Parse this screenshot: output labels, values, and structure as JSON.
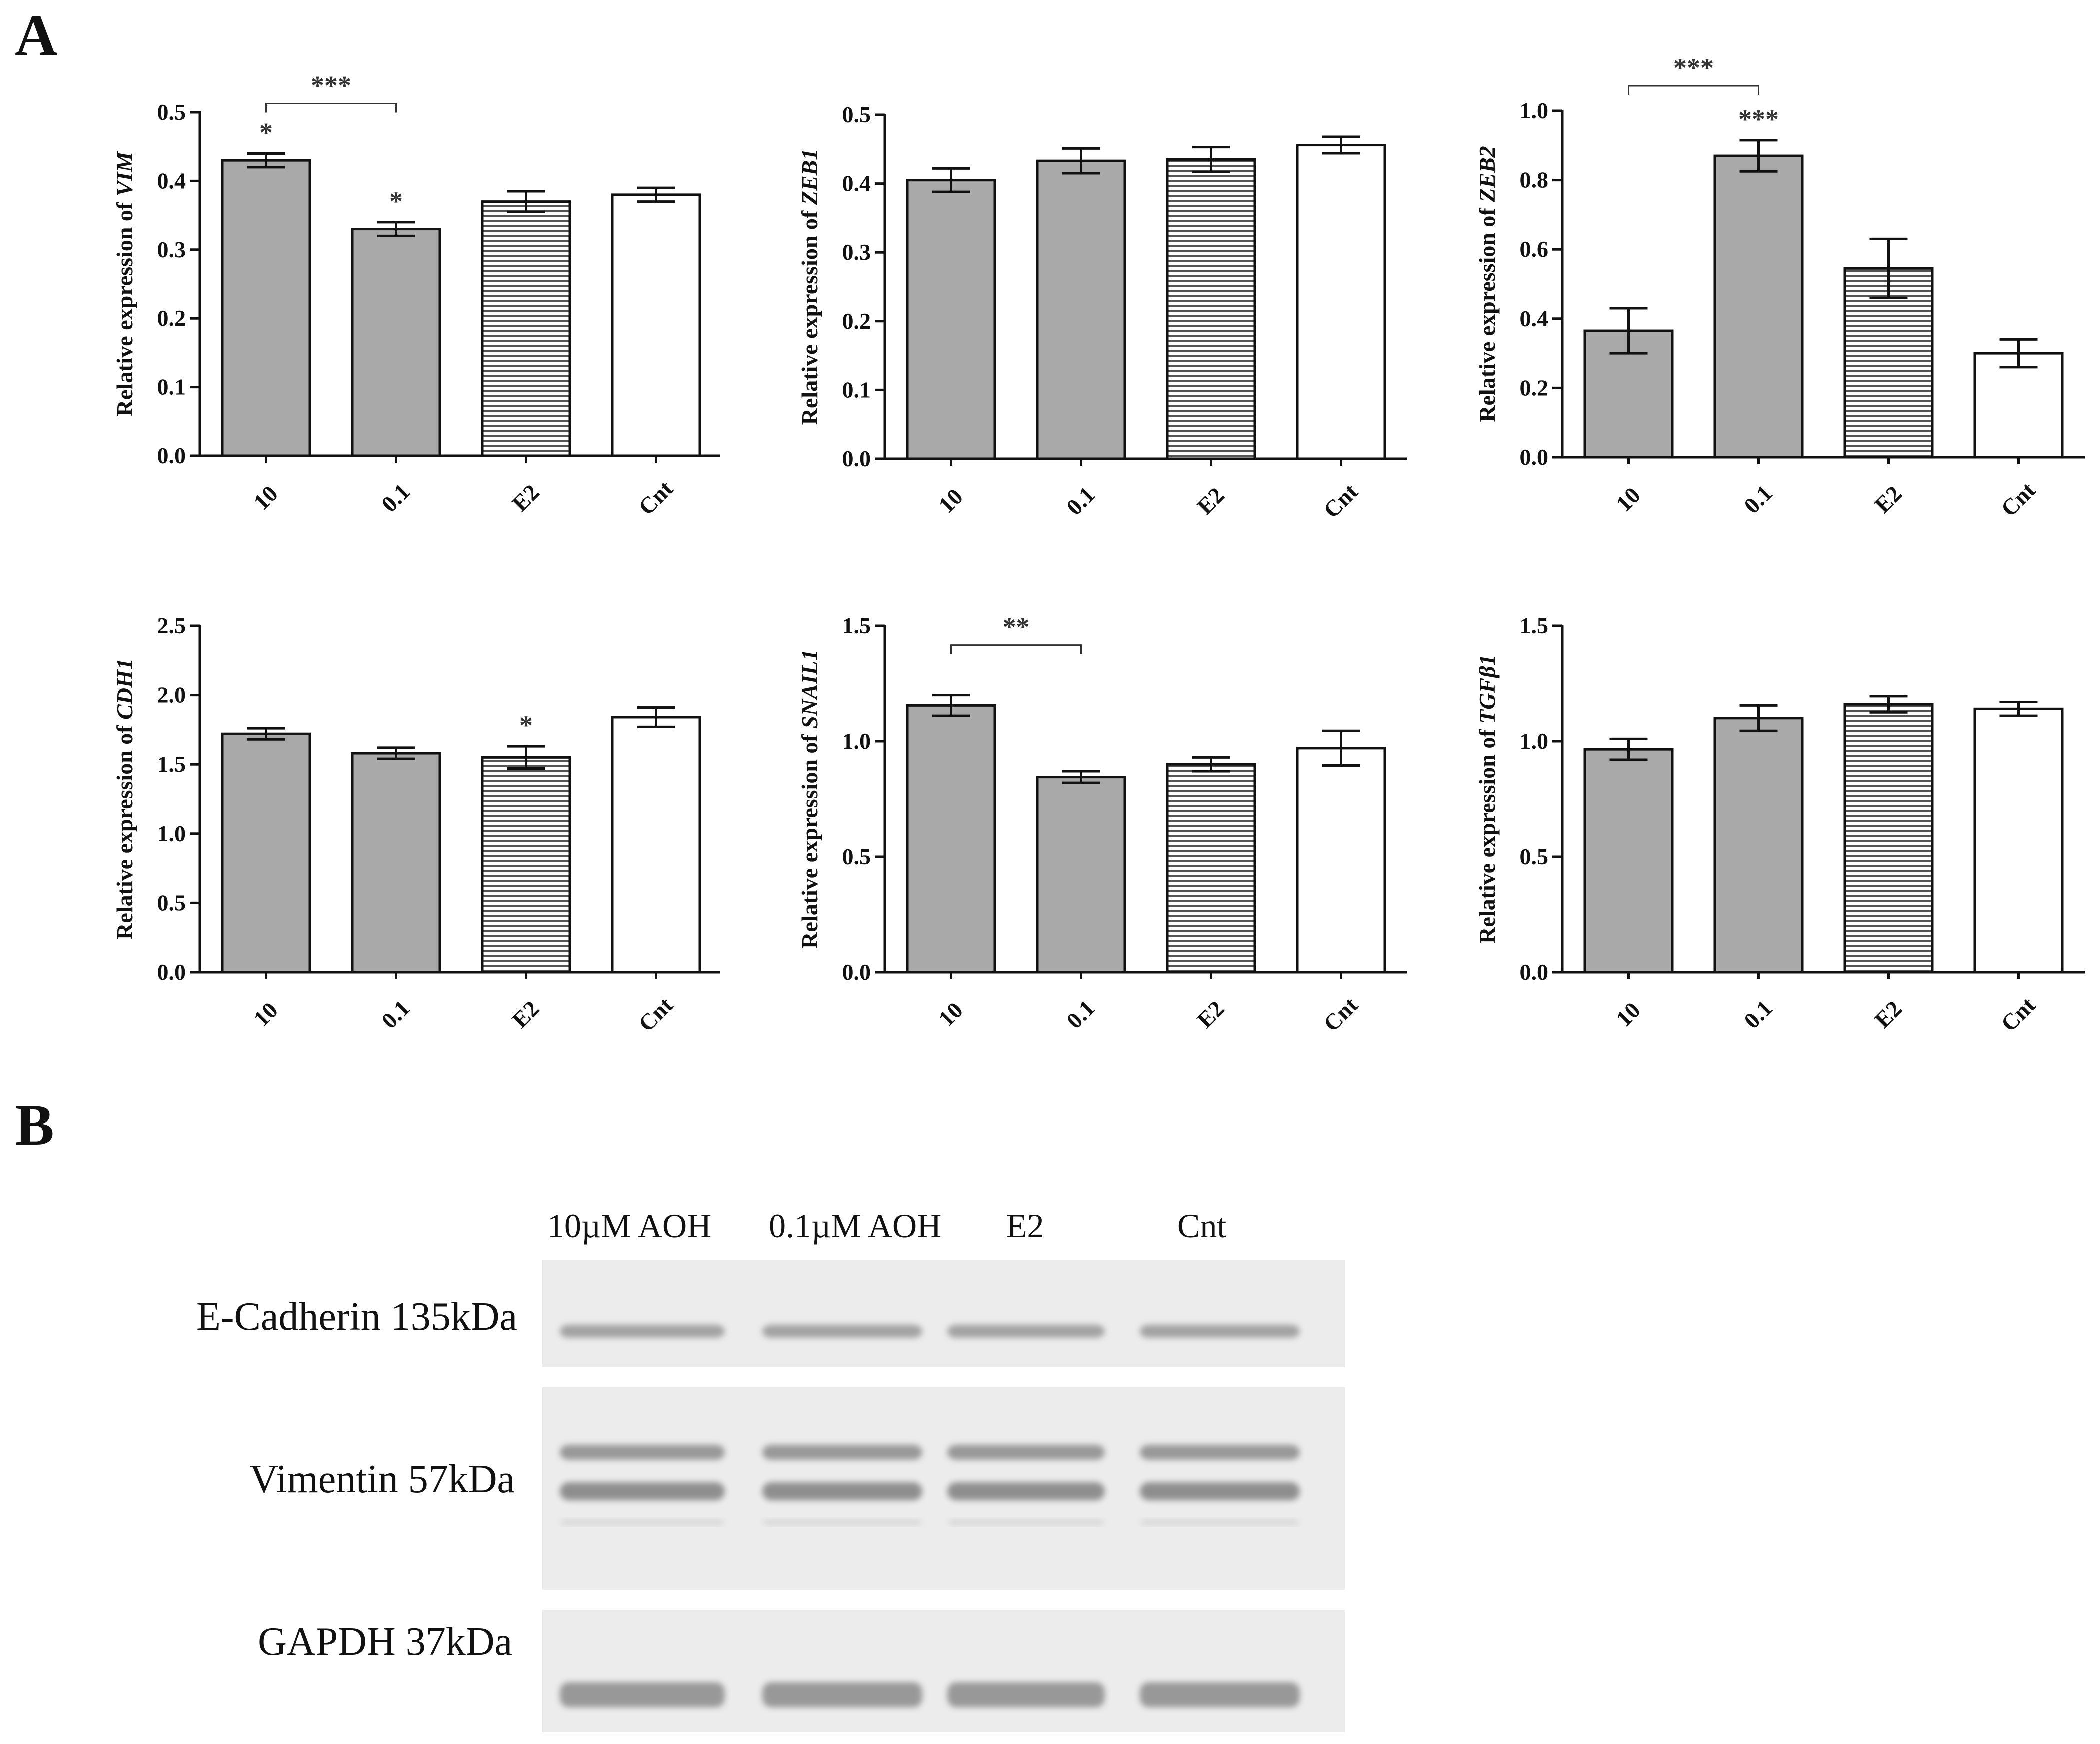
{
  "panels": {
    "a_label": "A",
    "b_label": "B"
  },
  "chart_data": [
    {
      "type": "bar",
      "ylabel_prefix": "Relative expression of ",
      "ylabel_gene": "VIM",
      "categories": [
        "10",
        "0.1",
        "E2",
        "Cnt"
      ],
      "values": [
        0.43,
        0.33,
        0.37,
        0.38
      ],
      "errors": [
        0.01,
        0.01,
        0.015,
        0.01
      ],
      "ylim": [
        0,
        0.5
      ],
      "yticks": [
        "0.0",
        "0.1",
        "0.2",
        "0.3",
        "0.4",
        "0.5"
      ],
      "bar_styles": [
        "gray",
        "gray",
        "striped",
        "white"
      ],
      "stars": [
        {
          "index": 0,
          "text": "*"
        },
        {
          "index": 1,
          "text": "*"
        }
      ],
      "brackets": [
        {
          "from": 0,
          "to": 1,
          "text": "***"
        }
      ]
    },
    {
      "type": "bar",
      "ylabel_prefix": "Relative expression of ",
      "ylabel_gene": "ZEB1",
      "categories": [
        "10",
        "0.1",
        "E2",
        "Cnt"
      ],
      "values": [
        0.405,
        0.433,
        0.435,
        0.456
      ],
      "errors": [
        0.017,
        0.018,
        0.018,
        0.012
      ],
      "ylim": [
        0,
        0.5
      ],
      "yticks": [
        "0.0",
        "0.1",
        "0.2",
        "0.3",
        "0.4",
        "0.5"
      ],
      "bar_styles": [
        "gray",
        "gray",
        "striped",
        "white"
      ],
      "stars": [],
      "brackets": []
    },
    {
      "type": "bar",
      "ylabel_prefix": "Relative expression of ",
      "ylabel_gene": "ZEB2",
      "categories": [
        "10",
        "0.1",
        "E2",
        "Cnt"
      ],
      "values": [
        0.365,
        0.87,
        0.545,
        0.3
      ],
      "errors": [
        0.065,
        0.045,
        0.085,
        0.04
      ],
      "ylim": [
        0,
        1.0
      ],
      "yticks": [
        "0.0",
        "0.2",
        "0.4",
        "0.6",
        "0.8",
        "1.0"
      ],
      "bar_styles": [
        "gray",
        "gray",
        "striped",
        "white"
      ],
      "stars": [
        {
          "index": 1,
          "text": "***"
        }
      ],
      "brackets": [
        {
          "from": 0,
          "to": 1,
          "text": "***"
        }
      ]
    },
    {
      "type": "bar",
      "ylabel_prefix": "Relative expression of ",
      "ylabel_gene": "CDH1",
      "categories": [
        "10",
        "0.1",
        "E2",
        "Cnt"
      ],
      "values": [
        1.72,
        1.58,
        1.55,
        1.84
      ],
      "errors": [
        0.04,
        0.04,
        0.08,
        0.07
      ],
      "ylim": [
        0,
        2.5
      ],
      "yticks": [
        "0.0",
        "0.5",
        "1.0",
        "1.5",
        "2.0",
        "2.5"
      ],
      "bar_styles": [
        "gray",
        "gray",
        "striped",
        "white"
      ],
      "stars": [
        {
          "index": 2,
          "text": "*"
        }
      ],
      "brackets": []
    },
    {
      "type": "bar",
      "ylabel_prefix": "Relative expression of ",
      "ylabel_gene": "SNAIL1",
      "categories": [
        "10",
        "0.1",
        "E2",
        "Cnt"
      ],
      "values": [
        1.155,
        0.845,
        0.9,
        0.97
      ],
      "errors": [
        0.045,
        0.025,
        0.03,
        0.075
      ],
      "ylim": [
        0,
        1.5
      ],
      "yticks": [
        "0.0",
        "0.5",
        "1.0",
        "1.5"
      ],
      "bar_styles": [
        "gray",
        "gray",
        "striped",
        "white"
      ],
      "stars": [],
      "brackets": [
        {
          "from": 0,
          "to": 1,
          "text": "**"
        }
      ]
    },
    {
      "type": "bar",
      "ylabel_prefix": "Relative expression of ",
      "ylabel_gene": "TGFβ1",
      "categories": [
        "10",
        "0.1",
        "E2",
        "Cnt"
      ],
      "values": [
        0.965,
        1.1,
        1.16,
        1.14
      ],
      "errors": [
        0.045,
        0.055,
        0.035,
        0.03
      ],
      "ylim": [
        0,
        1.5
      ],
      "yticks": [
        "0.0",
        "0.5",
        "1.0",
        "1.5"
      ],
      "bar_styles": [
        "gray",
        "gray",
        "striped",
        "white"
      ],
      "stars": [],
      "brackets": []
    }
  ],
  "blot": {
    "lanes": [
      "10µM AOH",
      "0.1µM AOH",
      "E2",
      "Cnt"
    ],
    "rows": [
      {
        "label": "E-Cadherin 135kDa"
      },
      {
        "label": "Vimentin 57kDa"
      },
      {
        "label": "GAPDH 37kDa"
      }
    ]
  },
  "colors": {
    "bar_gray": "#a9a9a9",
    "bar_white": "#ffffff",
    "stroke": "#111111",
    "blot_bg": "#ececec",
    "band": "#8a8a8a"
  }
}
